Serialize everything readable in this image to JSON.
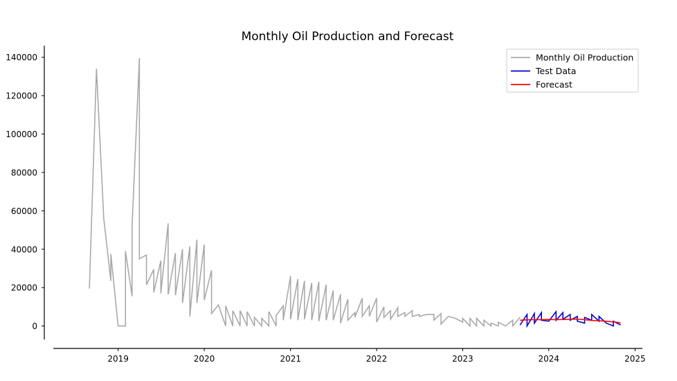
{
  "chart_data": {
    "type": "line",
    "title": "Monthly Oil Production and Forecast",
    "xlabel": "",
    "ylabel": "",
    "xlim": [
      "2018-04-01",
      "2025-02-01"
    ],
    "ylim": [
      -7000,
      146000
    ],
    "x_ticks": [
      "2019",
      "2020",
      "2021",
      "2022",
      "2023",
      "2024",
      "2025"
    ],
    "y_ticks": [
      0,
      20000,
      40000,
      60000,
      80000,
      100000,
      120000,
      140000
    ],
    "y_tick_labels": [
      "0",
      "20000",
      "40000",
      "60000",
      "80000",
      "100000",
      "120000",
      "140000"
    ],
    "grid": false,
    "legend_position": "top-right",
    "series": [
      {
        "name": "Monthly Oil Production",
        "color": "#a9a9a9",
        "x": [
          "2018-09-01",
          "2018-10-01",
          "2018-11-01",
          "2018-12-01",
          "2018-12-01",
          "2019-01-01",
          "2019-02-01",
          "2019-02-01",
          "2019-03-01",
          "2019-03-01",
          "2019-04-01",
          "2019-04-01",
          "2019-05-01",
          "2019-05-01",
          "2019-06-01",
          "2019-06-01",
          "2019-07-01",
          "2019-07-01",
          "2019-08-01",
          "2019-08-01",
          "2019-09-01",
          "2019-09-01",
          "2019-10-01",
          "2019-10-01",
          "2019-11-01",
          "2019-11-01",
          "2019-12-01",
          "2019-12-01",
          "2020-01-01",
          "2020-01-01",
          "2020-02-01",
          "2020-02-01",
          "2020-03-01",
          "2020-04-01",
          "2020-04-01",
          "2020-05-01",
          "2020-05-01",
          "2020-06-01",
          "2020-06-01",
          "2020-07-01",
          "2020-07-01",
          "2020-08-01",
          "2020-08-01",
          "2020-09-01",
          "2020-09-01",
          "2020-10-01",
          "2020-10-01",
          "2020-11-01",
          "2020-11-01",
          "2020-12-01",
          "2020-12-01",
          "2021-01-01",
          "2021-01-01",
          "2021-02-01",
          "2021-02-01",
          "2021-03-01",
          "2021-03-01",
          "2021-04-01",
          "2021-04-01",
          "2021-05-01",
          "2021-05-01",
          "2021-06-01",
          "2021-06-01",
          "2021-07-01",
          "2021-07-01",
          "2021-08-01",
          "2021-08-01",
          "2021-09-01",
          "2021-09-01",
          "2021-10-01",
          "2021-10-01",
          "2021-11-01",
          "2021-11-01",
          "2021-12-01",
          "2021-12-01",
          "2022-01-01",
          "2022-01-01",
          "2022-02-01",
          "2022-02-01",
          "2022-03-01",
          "2022-03-01",
          "2022-04-01",
          "2022-04-01",
          "2022-05-01",
          "2022-05-01",
          "2022-06-01",
          "2022-06-01",
          "2022-07-01",
          "2022-07-01",
          "2022-08-01",
          "2022-09-01",
          "2022-09-01",
          "2022-10-01",
          "2022-10-01",
          "2022-11-01",
          "2022-12-01",
          "2023-01-01",
          "2023-01-01",
          "2023-02-01",
          "2023-02-01",
          "2023-03-01",
          "2023-03-01",
          "2023-04-01",
          "2023-04-01",
          "2023-05-01",
          "2023-05-01",
          "2023-06-01",
          "2023-06-01",
          "2023-07-01",
          "2023-08-01",
          "2023-08-01",
          "2023-09-01"
        ],
        "y": [
          19500,
          134000,
          56000,
          23500,
          37500,
          0,
          0,
          39000,
          15500,
          52000,
          139500,
          35000,
          37000,
          21500,
          29500,
          17500,
          34000,
          17000,
          53500,
          16500,
          38000,
          16000,
          40000,
          12000,
          41500,
          5000,
          45000,
          12000,
          42500,
          13500,
          29000,
          6500,
          11000,
          0,
          10500,
          0,
          8000,
          0,
          8000,
          0,
          7500,
          0,
          4500,
          0,
          4000,
          0,
          7500,
          0,
          5500,
          10500,
          3000,
          26000,
          3500,
          24500,
          3000,
          23500,
          3500,
          22500,
          3000,
          23000,
          2500,
          21500,
          3000,
          18500,
          3000,
          16500,
          1500,
          14000,
          3000,
          7000,
          4500,
          14500,
          5000,
          10500,
          5000,
          14500,
          2000,
          10000,
          4500,
          8000,
          3500,
          9500,
          5000,
          7000,
          5000,
          8000,
          5000,
          6000,
          5000,
          6000,
          6000,
          3000,
          6500,
          1000,
          5000,
          4000,
          2000,
          4000,
          0,
          4000,
          0,
          4000,
          0,
          3000,
          0,
          1500,
          0,
          2000,
          0,
          3000,
          0,
          4500
        ],
        "values": [
          19500,
          134000,
          56000,
          23500,
          37500,
          0,
          0,
          39000,
          15500,
          52000,
          139500,
          35000,
          37000,
          21500,
          29500,
          17500,
          34000,
          17000,
          53500,
          16500,
          38000,
          16000,
          40000,
          12000,
          41500,
          5000,
          45000,
          12000,
          42500,
          13500,
          29000,
          6500,
          11000,
          0,
          10500,
          0,
          8000,
          0,
          8000,
          0,
          7500,
          0,
          4500,
          0,
          4000,
          0,
          7500,
          0,
          5500,
          10500,
          3000,
          26000,
          3500,
          24500,
          3000,
          23500,
          3500,
          22500,
          3000,
          23000,
          2500,
          21500,
          3000,
          18500,
          3000,
          16500,
          1500,
          14000,
          3000,
          7000,
          4500,
          14500,
          5000,
          10500,
          5000,
          14500,
          2000,
          10000,
          4500,
          8000,
          3500,
          9500,
          5000,
          7000,
          5000,
          8000,
          5000,
          6000,
          5000,
          6000,
          6000,
          3000,
          6500,
          1000,
          5000,
          4000,
          2000,
          4000,
          0,
          4000,
          0,
          4000,
          0,
          3000,
          0,
          1500,
          0,
          2000,
          0,
          3000,
          0,
          4500
        ]
      },
      {
        "name": "Test Data",
        "color": "#0000cc",
        "x": [
          "2023-09-01",
          "2023-10-01",
          "2023-10-01",
          "2023-11-01",
          "2023-11-01",
          "2023-12-01",
          "2023-12-01",
          "2024-01-01",
          "2024-02-01",
          "2024-02-01",
          "2024-03-01",
          "2024-03-01",
          "2024-04-01",
          "2024-04-01",
          "2024-05-01",
          "2024-05-01",
          "2024-06-01",
          "2024-06-01",
          "2024-07-01",
          "2024-07-01",
          "2024-08-01",
          "2024-08-01",
          "2024-09-01",
          "2024-10-01",
          "2024-10-01",
          "2024-11-01"
        ],
        "y": [
          500,
          6000,
          0,
          6500,
          1500,
          7000,
          3000,
          2500,
          7500,
          3000,
          7000,
          3500,
          6000,
          3000,
          5000,
          2500,
          1500,
          4500,
          3000,
          6000,
          2500,
          5000,
          1500,
          0,
          2500,
          500
        ],
        "values": [
          500,
          6000,
          0,
          6500,
          1500,
          7000,
          3000,
          2500,
          7500,
          3000,
          7000,
          3500,
          6000,
          3000,
          5000,
          2500,
          1500,
          4500,
          3000,
          6000,
          2500,
          5000,
          1500,
          0,
          2500,
          500
        ]
      },
      {
        "name": "Forecast",
        "color": "#ff0000",
        "x": [
          "2023-09-01",
          "2023-10-01",
          "2023-11-01",
          "2023-12-01",
          "2024-01-01",
          "2024-02-01",
          "2024-03-01",
          "2024-04-01",
          "2024-05-01",
          "2024-06-01",
          "2024-07-01",
          "2024-08-01",
          "2024-09-01",
          "2024-10-01",
          "2024-11-01"
        ],
        "y": [
          3000,
          3200,
          3300,
          3300,
          3400,
          3300,
          3400,
          3500,
          3600,
          3300,
          2900,
          2700,
          2500,
          2100,
          1700
        ],
        "values": [
          3000,
          3200,
          3300,
          3300,
          3400,
          3300,
          3400,
          3500,
          3600,
          3300,
          2900,
          2700,
          2500,
          2100,
          1700
        ]
      }
    ]
  }
}
